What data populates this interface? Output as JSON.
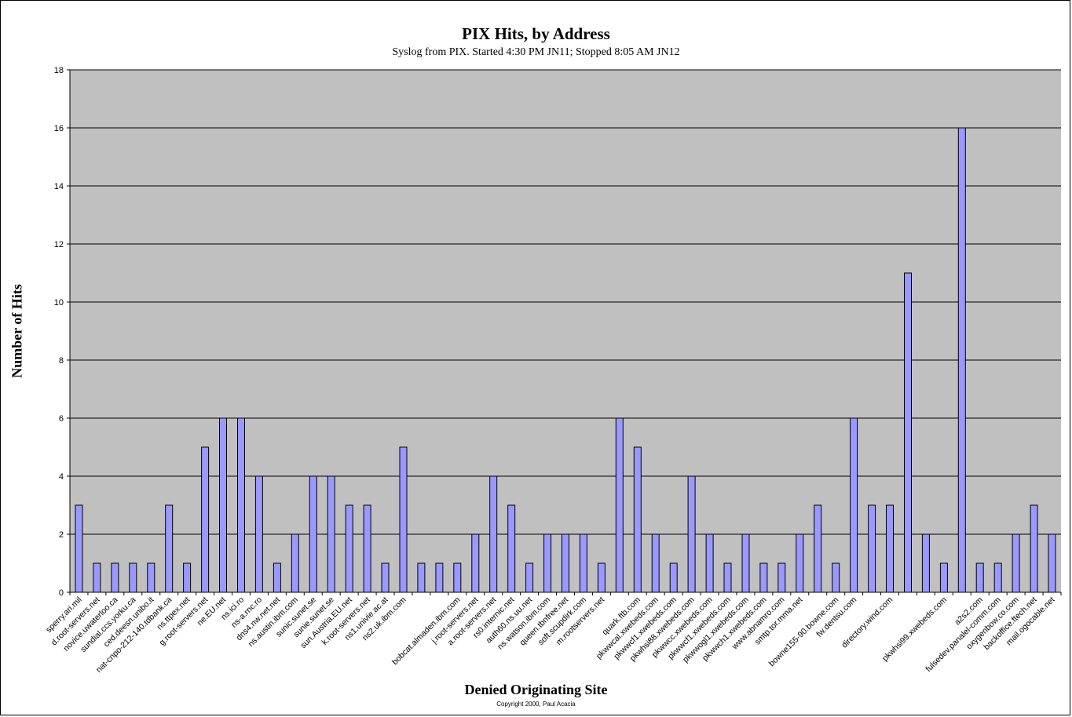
{
  "chart_data": {
    "type": "bar",
    "title": "PIX Hits, by Address",
    "subtitle": "Syslog from PIX.  Started 4:30 PM JN11; Stopped 8:05 AM JN12",
    "xlabel": "Denied Originating Site",
    "ylabel": "Number of Hits",
    "footer": "Copyright 2000, Paul Acacia",
    "ylim": [
      0,
      18
    ],
    "yticks": [
      0,
      2,
      4,
      6,
      8,
      10,
      12,
      14,
      16,
      18
    ],
    "grid": true,
    "legend": "none",
    "colors": {
      "plot_bg": "#c0c0c0",
      "bar_fill": "#9999ff",
      "bar_stroke": "#000000",
      "grid": "#000000"
    },
    "categories": [
      "sperry.ari.mil",
      "d.root-servers.net",
      "novice.uwaterloo.ca",
      "sundial.ccs.yorku.ca",
      "ced.deesn.unibo.it",
      "nat-cnpo-212-140.tdbank.ca",
      "ns.ttpex.net",
      "g.root-servers.net",
      "ne.EU.net",
      "ns.ici.ro",
      "ns-a.rnc.ro",
      "dns4.nw.net.net",
      "ns.austin.ibm.com",
      "sunic.sunet.se",
      "sunie.sunet.se",
      "sun.Austria.EU.net",
      "k.root-servers.net",
      "ns1.univie.ac.at",
      "ns2.uk.ibm.com",
      "",
      "",
      "bobcat.almaden.ibm.com",
      "j.root-servers.net",
      "a.root-servers.net",
      "rs0.internic.net",
      "auth60.ns.uu.net",
      "ns.watson.ibm.com",
      "queen.tbnfree.net",
      "soft.scupdirk.com",
      "m.rootservers.net",
      "",
      "quark.ftb.com",
      "pkwwcal.xwebeds.com",
      "pkwwcf1.xwebeds.com",
      "pkwhsi88.xwebeds.com",
      "pkwwcc.xwebeds.com",
      "pkwwcf1.xwebeds.com",
      "pkwwogl1.xwebeds.com",
      "pkwwch1.xwebeds.com",
      "www.abnamro.com",
      "smtp.tor.mma.net",
      "",
      "bowne155-90.bowne.com",
      "fw.dentsu.com",
      "",
      "directory.wind.com",
      "",
      "",
      "pkwhsi99.xwebeds.com",
      "",
      "a2s2.com",
      "fulsedev.panalel-comm.com",
      "oxygenbow.co.com",
      "backoffice.ftech.net",
      "mail.ogocable.net"
    ],
    "values": [
      3,
      1,
      1,
      1,
      1,
      3,
      1,
      5,
      6,
      6,
      4,
      1,
      2,
      4,
      4,
      3,
      3,
      1,
      5,
      1,
      1,
      1,
      2,
      4,
      3,
      1,
      2,
      2,
      2,
      1,
      6,
      5,
      2,
      1,
      4,
      2,
      1,
      2,
      1,
      1,
      2,
      3,
      1,
      6,
      3,
      3,
      11,
      2,
      1,
      16,
      1,
      1,
      2,
      3,
      2
    ]
  }
}
